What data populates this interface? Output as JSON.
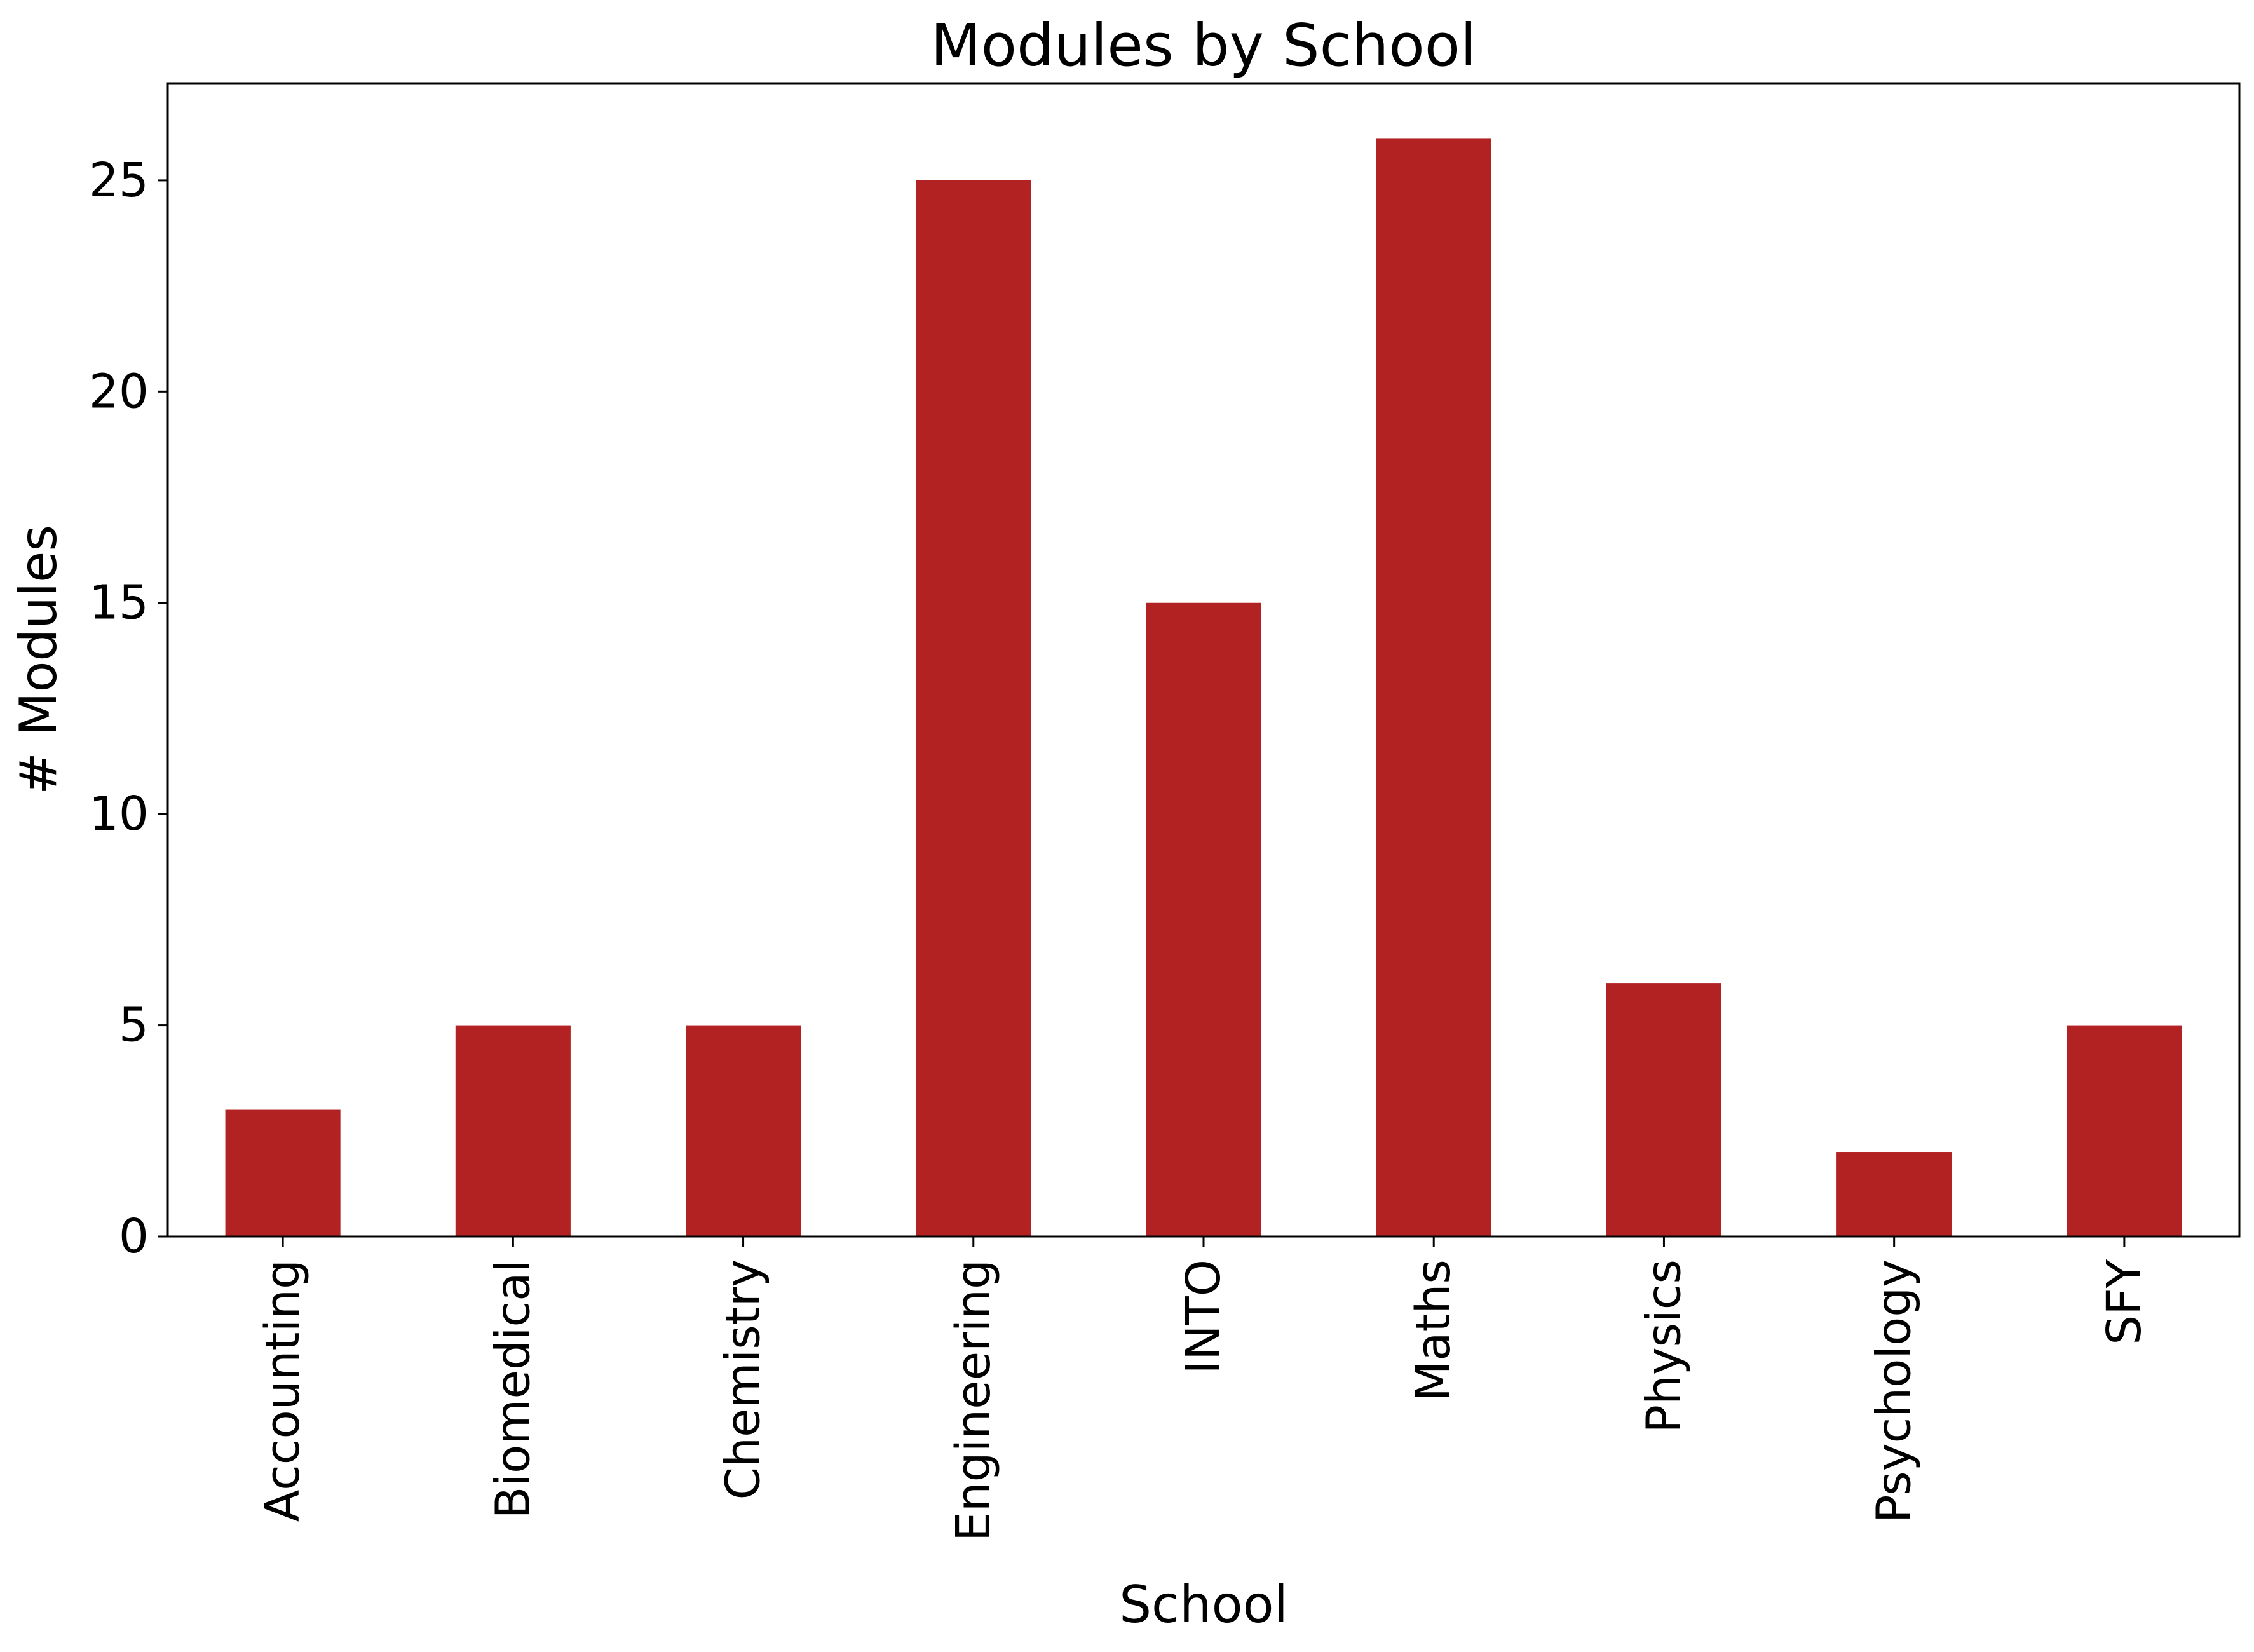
{
  "chart_data": {
    "type": "bar",
    "title": "Modules by School",
    "xlabel": "School",
    "ylabel": "# Modules",
    "categories": [
      "Accounting",
      "Biomedical",
      "Chemistry",
      "Engineering",
      "INTO",
      "Maths",
      "Physics",
      "Psychology",
      "SFY"
    ],
    "values": [
      3,
      5,
      5,
      25,
      15,
      26,
      6,
      2,
      5
    ],
    "ylim": [
      0,
      27.3
    ],
    "yticks": [
      0,
      5,
      10,
      15,
      20,
      25
    ],
    "grid": false,
    "legend": "none",
    "bar_color": "#B22222",
    "axis_color": "#000000",
    "background_color": "#FFFFFF"
  }
}
